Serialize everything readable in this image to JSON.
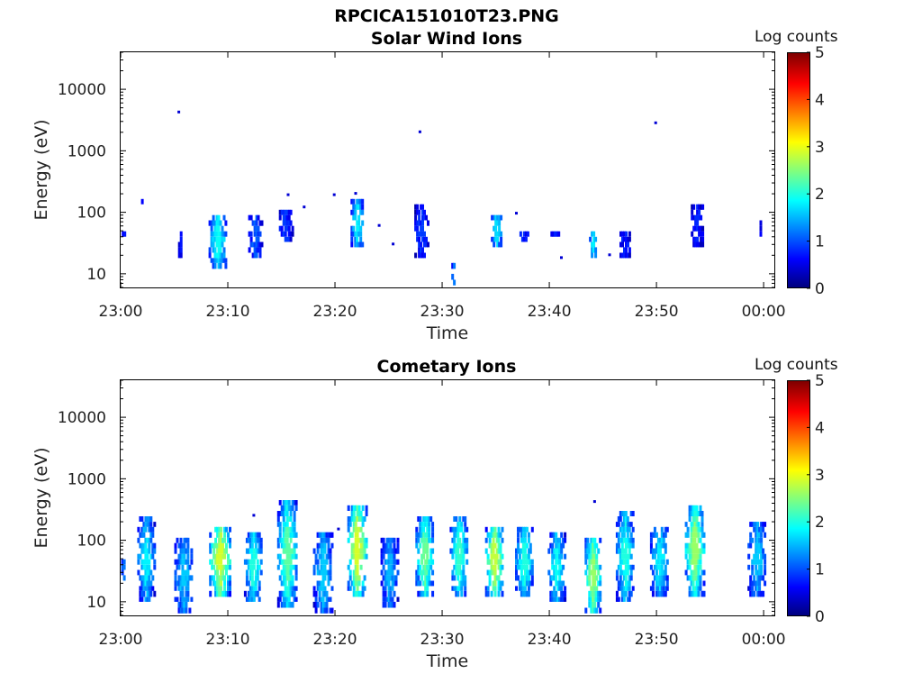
{
  "figure": {
    "title": "RPCICA151010T23.PNG"
  },
  "colormap": {
    "stops": [
      "#00007f",
      "#0000ff",
      "#00ffff",
      "#ffff00",
      "#ff0000",
      "#7f0000"
    ],
    "label": "Log counts",
    "ticks": [
      "0",
      "1",
      "2",
      "3",
      "4",
      "5"
    ]
  },
  "chart_data": [
    {
      "type": "heatmap",
      "title": "Solar Wind Ions",
      "xlabel": "Time",
      "ylabel": "Energy (eV)",
      "xticks": [
        "23:00",
        "23:10",
        "23:20",
        "23:30",
        "23:40",
        "23:50",
        "00:00"
      ],
      "yticks": [
        "10",
        "100",
        "1000",
        "10000"
      ],
      "ylim": [
        6,
        40000
      ],
      "yscale": "log",
      "xlim_minutes": [
        0,
        61
      ],
      "clim": [
        0,
        5
      ],
      "clusters": [
        {
          "t": 0.2,
          "lo": 30,
          "hi": 45,
          "peak": 0.7,
          "w": 0.2
        },
        {
          "t": 2.0,
          "lo": 130,
          "hi": 150,
          "peak": 0.6,
          "w": 0.2
        },
        {
          "t": 3.4,
          "lo": 38,
          "hi": 42,
          "peak": 0.6,
          "w": 0.2
        },
        {
          "t": 5.5,
          "lo": 17,
          "hi": 45,
          "peak": 0.7,
          "w": 0.3
        },
        {
          "t": 9.0,
          "lo": 11,
          "hi": 80,
          "peak": 1.9,
          "w": 1.6
        },
        {
          "t": 12.5,
          "lo": 17,
          "hi": 80,
          "peak": 1.1,
          "w": 1.2
        },
        {
          "t": 15.3,
          "lo": 28,
          "hi": 95,
          "peak": 0.9,
          "w": 1.4
        },
        {
          "t": 22.0,
          "lo": 25,
          "hi": 150,
          "peak": 1.8,
          "w": 1.1
        },
        {
          "t": 28.0,
          "lo": 18,
          "hi": 120,
          "peak": 0.9,
          "w": 1.2
        },
        {
          "t": 31.0,
          "lo": 6,
          "hi": 12,
          "peak": 1.2,
          "w": 0.3
        },
        {
          "t": 35.0,
          "lo": 25,
          "hi": 85,
          "peak": 1.7,
          "w": 0.9
        },
        {
          "t": 37.5,
          "lo": 28,
          "hi": 45,
          "peak": 0.8,
          "w": 0.9
        },
        {
          "t": 40.5,
          "lo": 38,
          "hi": 42,
          "peak": 0.8,
          "w": 0.8
        },
        {
          "t": 44.0,
          "lo": 18,
          "hi": 45,
          "peak": 1.8,
          "w": 0.6
        },
        {
          "t": 47.0,
          "lo": 18,
          "hi": 45,
          "peak": 0.8,
          "w": 0.9
        },
        {
          "t": 53.7,
          "lo": 25,
          "hi": 120,
          "peak": 0.8,
          "w": 1.0
        },
        {
          "t": 59.6,
          "lo": 30,
          "hi": 60,
          "peak": 0.6,
          "w": 0.3
        }
      ],
      "isolated": [
        {
          "t": 5.3,
          "e": 4200,
          "v": 0.4
        },
        {
          "t": 27.8,
          "e": 2000,
          "v": 0.4
        },
        {
          "t": 49.8,
          "e": 2800,
          "v": 0.4
        },
        {
          "t": 15.5,
          "e": 190,
          "v": 0.4
        },
        {
          "t": 17.0,
          "e": 120,
          "v": 0.4
        },
        {
          "t": 19.8,
          "e": 190,
          "v": 0.4
        },
        {
          "t": 21.8,
          "e": 200,
          "v": 0.4
        },
        {
          "t": 24.0,
          "e": 60,
          "v": 0.4
        },
        {
          "t": 25.3,
          "e": 30,
          "v": 0.4
        },
        {
          "t": 36.8,
          "e": 95,
          "v": 0.4
        },
        {
          "t": 41.0,
          "e": 18,
          "v": 0.4
        },
        {
          "t": 45.5,
          "e": 20,
          "v": 0.4
        }
      ]
    },
    {
      "type": "heatmap",
      "title": "Cometary Ions",
      "xlabel": "Time",
      "ylabel": "Energy (eV)",
      "xticks": [
        "23:00",
        "23:10",
        "23:20",
        "23:30",
        "23:40",
        "23:50",
        "00:00"
      ],
      "yticks": [
        "10",
        "100",
        "1000",
        "10000"
      ],
      "ylim": [
        6,
        40000
      ],
      "yscale": "log",
      "xlim_minutes": [
        0,
        61
      ],
      "clim": [
        0,
        5
      ],
      "clusters": [
        {
          "t": 0.2,
          "lo": 20,
          "hi": 45,
          "peak": 1.2,
          "w": 0.3
        },
        {
          "t": 2.3,
          "lo": 10,
          "hi": 220,
          "peak": 1.8,
          "w": 1.5
        },
        {
          "t": 5.8,
          "lo": 6,
          "hi": 95,
          "peak": 1.6,
          "w": 1.6
        },
        {
          "t": 9.2,
          "lo": 12,
          "hi": 160,
          "peak": 2.9,
          "w": 1.9
        },
        {
          "t": 12.3,
          "lo": 10,
          "hi": 110,
          "peak": 2.0,
          "w": 1.6
        },
        {
          "t": 15.5,
          "lo": 8,
          "hi": 380,
          "peak": 2.3,
          "w": 1.8
        },
        {
          "t": 18.8,
          "lo": 6,
          "hi": 120,
          "peak": 1.6,
          "w": 1.7
        },
        {
          "t": 22.0,
          "lo": 12,
          "hi": 350,
          "peak": 2.9,
          "w": 1.7
        },
        {
          "t": 25.0,
          "lo": 8,
          "hi": 100,
          "peak": 1.5,
          "w": 1.5
        },
        {
          "t": 28.3,
          "lo": 12,
          "hi": 200,
          "peak": 2.4,
          "w": 1.6
        },
        {
          "t": 31.5,
          "lo": 12,
          "hi": 200,
          "peak": 2.1,
          "w": 1.6
        },
        {
          "t": 34.8,
          "lo": 12,
          "hi": 160,
          "peak": 2.8,
          "w": 1.6
        },
        {
          "t": 37.6,
          "lo": 12,
          "hi": 150,
          "peak": 2.0,
          "w": 1.6
        },
        {
          "t": 40.6,
          "lo": 10,
          "hi": 110,
          "peak": 1.9,
          "w": 1.5
        },
        {
          "t": 44.0,
          "lo": 6,
          "hi": 100,
          "peak": 2.6,
          "w": 1.4
        },
        {
          "t": 47.0,
          "lo": 10,
          "hi": 260,
          "peak": 2.0,
          "w": 1.6
        },
        {
          "t": 50.2,
          "lo": 12,
          "hi": 150,
          "peak": 1.8,
          "w": 1.6
        },
        {
          "t": 53.5,
          "lo": 12,
          "hi": 350,
          "peak": 2.6,
          "w": 1.7
        },
        {
          "t": 59.3,
          "lo": 12,
          "hi": 190,
          "peak": 1.6,
          "w": 1.6
        }
      ],
      "isolated": [
        {
          "t": 12.3,
          "e": 250,
          "v": 0.4
        },
        {
          "t": 44.1,
          "e": 420,
          "v": 0.4
        },
        {
          "t": 20.2,
          "e": 150,
          "v": 0.4
        }
      ]
    }
  ]
}
